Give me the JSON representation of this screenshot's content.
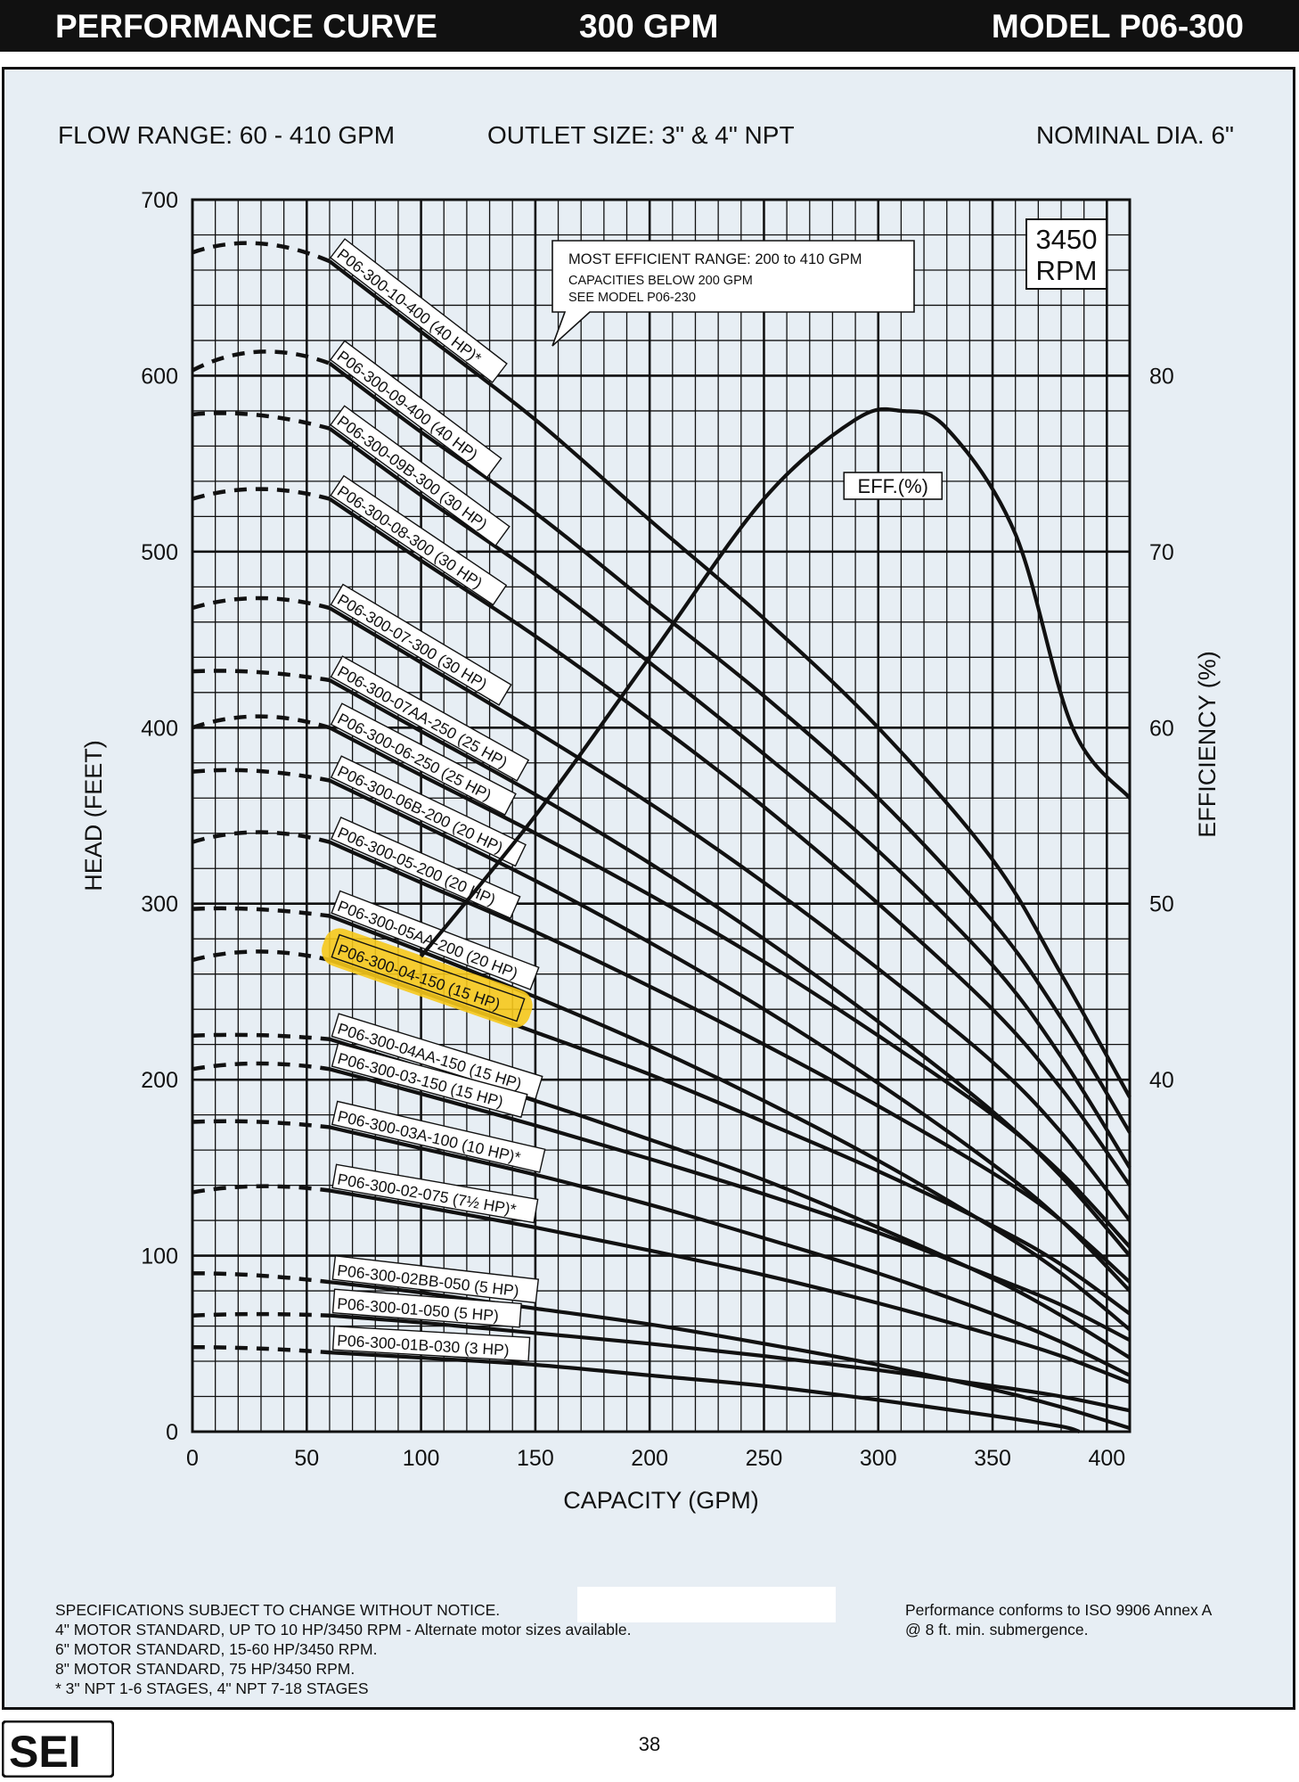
{
  "header": {
    "left": "PERFORMANCE CURVE",
    "center": "300 GPM",
    "right": "MODEL  P06-300"
  },
  "info": {
    "flow_range": "FLOW RANGE: 60 - 410 GPM",
    "outlet_size": "OUTLET SIZE: 3\" & 4\" NPT",
    "nominal_dia": "NOMINAL DIA. 6\""
  },
  "rpm_box": [
    "3450",
    "RPM"
  ],
  "callout": {
    "lines": [
      "MOST EFFICIENT RANGE: 200 to 410 GPM",
      "CAPACITIES BELOW 200 GPM",
      "SEE  MODEL P06-230"
    ]
  },
  "colors": {
    "highlight": "#f6c81b",
    "panel": "#e7eef4",
    "ink": "#111111"
  },
  "chart_data": {
    "type": "line",
    "xlabel": "CAPACITY (GPM)",
    "ylabel": "HEAD (FEET)",
    "y2label": "EFFICIENCY (%)",
    "xlim": [
      0,
      410
    ],
    "ylim": [
      0,
      700
    ],
    "y2lim": [
      20,
      90
    ],
    "x_ticks": [
      0,
      50,
      100,
      150,
      200,
      250,
      300,
      350,
      400
    ],
    "y_ticks": [
      0,
      100,
      200,
      300,
      400,
      500,
      600,
      700
    ],
    "y2_ticks": [
      40,
      50,
      60,
      70,
      80
    ],
    "grid": true,
    "series": [
      {
        "name": "P06-300-10-400 (40 HP)*",
        "shutoff": 670,
        "peak_x": 28,
        "peak": 678,
        "label_x": 60,
        "points": [
          [
            60,
            665
          ],
          [
            100,
            625
          ],
          [
            150,
            575
          ],
          [
            200,
            518
          ],
          [
            250,
            462
          ],
          [
            300,
            400
          ],
          [
            350,
            325
          ],
          [
            380,
            260
          ],
          [
            410,
            190
          ]
        ]
      },
      {
        "name": "P06-300-09-400 (40 HP)",
        "shutoff": 603,
        "peak_x": 28,
        "peak": 615,
        "label_x": 60,
        "points": [
          [
            60,
            607
          ],
          [
            100,
            568
          ],
          [
            150,
            522
          ],
          [
            200,
            470
          ],
          [
            250,
            418
          ],
          [
            300,
            360
          ],
          [
            350,
            290
          ],
          [
            380,
            235
          ],
          [
            410,
            170
          ]
        ]
      },
      {
        "name": "P06-300-09B-300 (30 HP)",
        "shutoff": 578,
        "peak_x": 28,
        "peak": 580,
        "label_x": 60,
        "points": [
          [
            60,
            570
          ],
          [
            100,
            532
          ],
          [
            150,
            487
          ],
          [
            200,
            437
          ],
          [
            250,
            385
          ],
          [
            300,
            330
          ],
          [
            350,
            265
          ],
          [
            380,
            213
          ],
          [
            410,
            150
          ]
        ]
      },
      {
        "name": "P06-300-08-300 (30 HP)",
        "shutoff": 530,
        "peak_x": 28,
        "peak": 537,
        "label_x": 60,
        "points": [
          [
            60,
            530
          ],
          [
            100,
            495
          ],
          [
            150,
            452
          ],
          [
            200,
            405
          ],
          [
            250,
            355
          ],
          [
            300,
            300
          ],
          [
            350,
            240
          ],
          [
            380,
            195
          ],
          [
            410,
            140
          ]
        ]
      },
      {
        "name": "P06-300-07-300 (30 HP)",
        "shutoff": 468,
        "peak_x": 28,
        "peak": 475,
        "label_x": 60,
        "points": [
          [
            60,
            468
          ],
          [
            100,
            437
          ],
          [
            150,
            398
          ],
          [
            200,
            357
          ],
          [
            250,
            312
          ],
          [
            300,
            263
          ],
          [
            350,
            210
          ],
          [
            380,
            170
          ],
          [
            410,
            120
          ]
        ]
      },
      {
        "name": "P06-300-07AA-250 (25 HP)",
        "shutoff": 432,
        "peak_x": 28,
        "peak": 433,
        "label_x": 60,
        "points": [
          [
            60,
            427
          ],
          [
            100,
            398
          ],
          [
            150,
            362
          ],
          [
            200,
            323
          ],
          [
            250,
            280
          ],
          [
            300,
            233
          ],
          [
            350,
            182
          ],
          [
            380,
            145
          ],
          [
            410,
            100
          ]
        ]
      },
      {
        "name": "P06-300-06-250 (25 HP)",
        "shutoff": 400,
        "peak_x": 28,
        "peak": 408,
        "label_x": 60,
        "points": [
          [
            60,
            400
          ],
          [
            100,
            373
          ],
          [
            150,
            340
          ],
          [
            200,
            305
          ],
          [
            250,
            267
          ],
          [
            300,
            225
          ],
          [
            350,
            180
          ],
          [
            380,
            147
          ],
          [
            410,
            105
          ]
        ]
      },
      {
        "name": "P06-300-06B-200 (20 HP)",
        "shutoff": 375,
        "peak_x": 28,
        "peak": 377,
        "label_x": 60,
        "points": [
          [
            60,
            370
          ],
          [
            100,
            345
          ],
          [
            150,
            313
          ],
          [
            200,
            278
          ],
          [
            250,
            240
          ],
          [
            300,
            198
          ],
          [
            350,
            152
          ],
          [
            380,
            120
          ],
          [
            410,
            80
          ]
        ]
      },
      {
        "name": "P06-300-05-200 (20 HP)",
        "shutoff": 335,
        "peak_x": 28,
        "peak": 342,
        "label_x": 60,
        "points": [
          [
            60,
            335
          ],
          [
            100,
            312
          ],
          [
            150,
            284
          ],
          [
            200,
            253
          ],
          [
            250,
            220
          ],
          [
            300,
            185
          ],
          [
            350,
            147
          ],
          [
            380,
            120
          ],
          [
            410,
            85
          ]
        ]
      },
      {
        "name": "P06-300-05AA-200 (20 HP)",
        "shutoff": 297,
        "peak_x": 28,
        "peak": 298,
        "label_x": 60,
        "points": [
          [
            60,
            293
          ],
          [
            100,
            273
          ],
          [
            150,
            247
          ],
          [
            200,
            219
          ],
          [
            250,
            188
          ],
          [
            300,
            154
          ],
          [
            350,
            116
          ],
          [
            380,
            90
          ],
          [
            410,
            58
          ]
        ]
      },
      {
        "name": "P06-300-04-150 (15 HP)",
        "shutoff": 268,
        "peak_x": 28,
        "peak": 274,
        "label_x": 60,
        "highlight": true,
        "points": [
          [
            60,
            268
          ],
          [
            100,
            250
          ],
          [
            150,
            227
          ],
          [
            200,
            203
          ],
          [
            250,
            176
          ],
          [
            300,
            148
          ],
          [
            350,
            117
          ],
          [
            380,
            95
          ],
          [
            410,
            67
          ]
        ]
      },
      {
        "name": "P06-300-04AA-150 (15 HP)",
        "shutoff": 225,
        "peak_x": 28,
        "peak": 226,
        "label_x": 60,
        "points": [
          [
            60,
            223
          ],
          [
            100,
            207
          ],
          [
            150,
            188
          ],
          [
            200,
            166
          ],
          [
            250,
            143
          ],
          [
            300,
            116
          ],
          [
            350,
            87
          ],
          [
            380,
            66
          ],
          [
            410,
            42
          ]
        ]
      },
      {
        "name": "P06-300-03-150 (15 HP)",
        "shutoff": 206,
        "peak_x": 28,
        "peak": 210,
        "label_x": 60,
        "points": [
          [
            60,
            206
          ],
          [
            100,
            192
          ],
          [
            150,
            174
          ],
          [
            200,
            155
          ],
          [
            250,
            135
          ],
          [
            300,
            113
          ],
          [
            350,
            88
          ],
          [
            380,
            72
          ],
          [
            410,
            52
          ]
        ]
      },
      {
        "name": "P06-300-03A-100 (10 HP)*",
        "shutoff": 176,
        "peak_x": 28,
        "peak": 177,
        "label_x": 60,
        "points": [
          [
            60,
            173
          ],
          [
            100,
            161
          ],
          [
            150,
            146
          ],
          [
            200,
            129
          ],
          [
            250,
            110
          ],
          [
            300,
            90
          ],
          [
            350,
            67
          ],
          [
            380,
            51
          ],
          [
            410,
            32
          ]
        ]
      },
      {
        "name": "P06-300-02-075 (7½ HP)*",
        "shutoff": 136,
        "peak_x": 28,
        "peak": 140,
        "label_x": 60,
        "points": [
          [
            60,
            137
          ],
          [
            100,
            128
          ],
          [
            150,
            116
          ],
          [
            200,
            103
          ],
          [
            250,
            89
          ],
          [
            300,
            73
          ],
          [
            350,
            55
          ],
          [
            380,
            43
          ],
          [
            410,
            28
          ]
        ]
      },
      {
        "name": "P06-300-02BB-050 (5 HP)",
        "shutoff": 90,
        "peak_x": 28,
        "peak": 90,
        "label_x": 60,
        "points": [
          [
            60,
            85
          ],
          [
            100,
            79
          ],
          [
            150,
            70
          ],
          [
            200,
            61
          ],
          [
            250,
            50
          ],
          [
            300,
            38
          ],
          [
            350,
            24
          ],
          [
            380,
            14
          ],
          [
            410,
            2
          ]
        ]
      },
      {
        "name": "P06-300-01-050 (5 HP)",
        "shutoff": 66,
        "peak_x": 28,
        "peak": 67,
        "label_x": 60,
        "points": [
          [
            60,
            66
          ],
          [
            100,
            62
          ],
          [
            150,
            56
          ],
          [
            200,
            50
          ],
          [
            250,
            43
          ],
          [
            300,
            35
          ],
          [
            350,
            26
          ],
          [
            380,
            20
          ],
          [
            410,
            12
          ]
        ]
      },
      {
        "name": "P06-300-01B-030 (3 HP)",
        "shutoff": 48,
        "peak_x": 28,
        "peak": 48,
        "label_x": 60,
        "points": [
          [
            60,
            45
          ],
          [
            100,
            42
          ],
          [
            150,
            38
          ],
          [
            200,
            32
          ],
          [
            250,
            26
          ],
          [
            300,
            18
          ],
          [
            350,
            9
          ],
          [
            380,
            3
          ],
          [
            388,
            0
          ]
        ]
      }
    ],
    "efficiency": {
      "name": "EFF.(%)",
      "points": [
        [
          100,
          47
        ],
        [
          150,
          55
        ],
        [
          200,
          64
        ],
        [
          250,
          73
        ],
        [
          290,
          77.5
        ],
        [
          310,
          78
        ],
        [
          330,
          77
        ],
        [
          360,
          71
        ],
        [
          385,
          60
        ],
        [
          410,
          56
        ]
      ]
    }
  },
  "notes": {
    "left": [
      "SPECIFICATIONS SUBJECT TO CHANGE WITHOUT NOTICE.",
      "4\" MOTOR STANDARD, UP TO 10 HP/3450 RPM - Alternate motor sizes available.",
      "6\" MOTOR STANDARD, 15-60 HP/3450 RPM.",
      "8\" MOTOR STANDARD, 75 HP/3450 RPM.",
      "* 3\" NPT 1-6 STAGES, 4\" NPT 7-18 STAGES"
    ],
    "right": [
      "Performance conforms to ISO 9906 Annex A",
      "@ 8 ft. min. submergence."
    ]
  },
  "footer": {
    "page": "38",
    "logo": "SEI"
  }
}
